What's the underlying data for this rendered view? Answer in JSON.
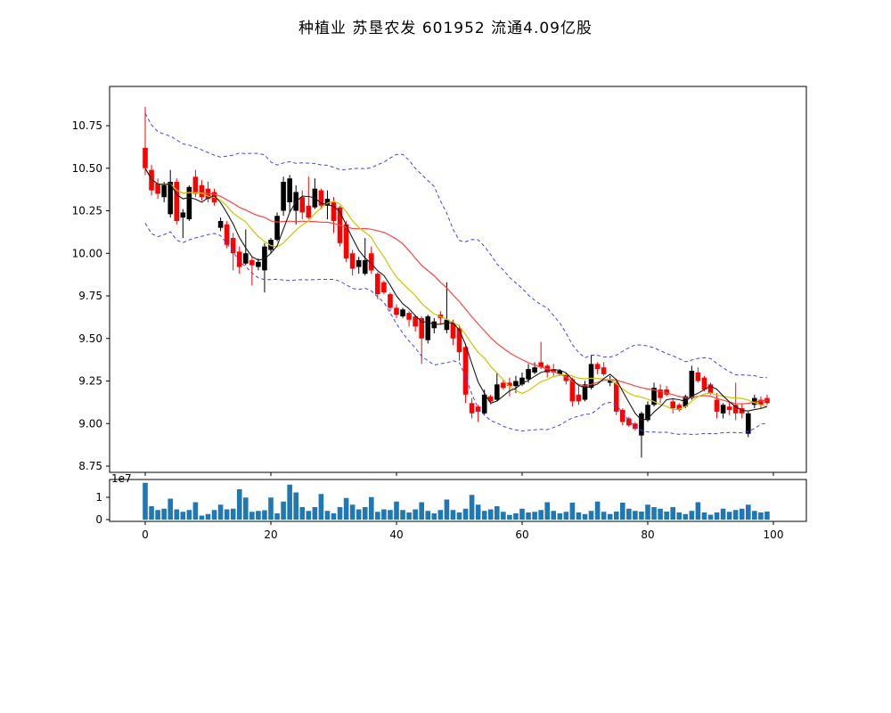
{
  "title": "种植业  苏垦农发  601952  流通4.09亿股",
  "price_chart": {
    "y_tick_labels": [
      "10.75",
      "10.50",
      "10.25",
      "10.00",
      "9.75",
      "9.50",
      "9.25",
      "9.00",
      "8.75"
    ],
    "y_tick_values": [
      10.75,
      10.5,
      10.25,
      10.0,
      9.75,
      9.5,
      9.25,
      9.0,
      8.75
    ],
    "x_tick_labels": [
      "0",
      "20",
      "40",
      "60",
      "80",
      "100"
    ],
    "x_tick_values": [
      0,
      20,
      40,
      60,
      80,
      100
    ]
  },
  "volume_chart": {
    "y_tick_labels": [
      "0",
      "1"
    ],
    "y_tick_values": [
      0,
      1
    ],
    "offset_label": "1e7"
  },
  "chart_data": {
    "type": "candlestick",
    "title": "种植业  苏垦农发  601952  流通4.09亿股",
    "xlabel": "",
    "ylabel": "",
    "xlim": [
      -5.7,
      105.2
    ],
    "ylim": [
      8.71,
      10.98
    ],
    "volume_ylim": [
      -0.1,
      1.8
    ],
    "volume_unit": "1e7",
    "grid": false,
    "legend": "none",
    "overlays": [
      {
        "name": "ma5",
        "color": "#1a1a1a",
        "style": "solid",
        "window": 5
      },
      {
        "name": "ma10",
        "color": "#c8c800",
        "style": "solid",
        "window": 10
      },
      {
        "name": "ma20",
        "color": "#ff4444",
        "style": "solid",
        "window": 20
      },
      {
        "name": "bollinger-upper",
        "color": "#4040ff",
        "style": "dashed",
        "window": 20,
        "k": 2
      },
      {
        "name": "bollinger-lower",
        "color": "#4040ff",
        "style": "dashed",
        "window": 20,
        "k": -2
      }
    ],
    "colors": {
      "up_candle": "#000000",
      "down_candle": "#ff0000",
      "volume_bar": "#1f77b4",
      "frame": "#000000"
    },
    "ohlc": [
      [
        10.62,
        10.86,
        10.46,
        10.5
      ],
      [
        10.49,
        10.52,
        10.34,
        10.37
      ],
      [
        10.41,
        10.44,
        10.32,
        10.35
      ],
      [
        10.33,
        10.42,
        10.3,
        10.4
      ],
      [
        10.23,
        10.49,
        10.21,
        10.42
      ],
      [
        10.42,
        10.44,
        10.17,
        10.19
      ],
      [
        10.21,
        10.26,
        10.09,
        10.24
      ],
      [
        10.2,
        10.4,
        10.19,
        10.39
      ],
      [
        10.45,
        10.49,
        10.33,
        10.35
      ],
      [
        10.4,
        10.43,
        10.31,
        10.33
      ],
      [
        10.38,
        10.42,
        10.3,
        10.32
      ],
      [
        10.36,
        10.38,
        10.28,
        10.3
      ],
      [
        10.15,
        10.21,
        10.13,
        10.19
      ],
      [
        10.17,
        10.19,
        10.03,
        10.05
      ],
      [
        10.09,
        10.12,
        9.9,
        10.0
      ],
      [
        10.01,
        10.04,
        9.88,
        9.92
      ],
      [
        9.94,
        10.14,
        9.93,
        10.0
      ],
      [
        9.96,
        9.98,
        9.81,
        9.93
      ],
      [
        9.92,
        9.97,
        9.9,
        9.95
      ],
      [
        9.9,
        10.06,
        9.77,
        10.04
      ],
      [
        10.02,
        10.09,
        10.0,
        10.08
      ],
      [
        10.08,
        10.24,
        10.07,
        10.22
      ],
      [
        10.25,
        10.45,
        10.22,
        10.42
      ],
      [
        10.3,
        10.46,
        10.24,
        10.44
      ],
      [
        10.25,
        10.4,
        10.17,
        10.36
      ],
      [
        10.33,
        10.37,
        10.2,
        10.24
      ],
      [
        10.28,
        10.45,
        10.2,
        10.21
      ],
      [
        10.27,
        10.44,
        10.26,
        10.38
      ],
      [
        10.37,
        10.38,
        10.26,
        10.28
      ],
      [
        10.28,
        10.37,
        10.2,
        10.32
      ],
      [
        10.3,
        10.33,
        10.12,
        10.19
      ],
      [
        10.27,
        10.28,
        10.04,
        10.06
      ],
      [
        10.17,
        10.19,
        9.95,
        9.97
      ],
      [
        10.0,
        10.02,
        9.87,
        9.91
      ],
      [
        9.92,
        9.98,
        9.88,
        9.96
      ],
      [
        9.88,
        10.09,
        9.87,
        9.96
      ],
      [
        10.0,
        10.04,
        9.88,
        9.9
      ],
      [
        9.88,
        9.89,
        9.73,
        9.76
      ],
      [
        9.83,
        9.84,
        9.76,
        9.77
      ],
      [
        9.76,
        9.77,
        9.66,
        9.68
      ],
      [
        9.68,
        9.7,
        9.62,
        9.64
      ],
      [
        9.63,
        9.68,
        9.62,
        9.67
      ],
      [
        9.65,
        9.66,
        9.57,
        9.61
      ],
      [
        9.63,
        9.64,
        9.54,
        9.57
      ],
      [
        9.62,
        9.63,
        9.35,
        9.5
      ],
      [
        9.49,
        9.64,
        9.47,
        9.63
      ],
      [
        9.56,
        9.62,
        9.53,
        9.6
      ],
      [
        9.64,
        9.66,
        9.58,
        9.62
      ],
      [
        9.55,
        9.83,
        9.53,
        9.61
      ],
      [
        9.59,
        9.61,
        9.46,
        9.5
      ],
      [
        9.56,
        9.58,
        9.37,
        9.42
      ],
      [
        9.45,
        9.47,
        9.12,
        9.17
      ],
      [
        9.12,
        9.15,
        9.03,
        9.06
      ],
      [
        9.1,
        9.11,
        9.01,
        9.07
      ],
      [
        9.06,
        9.2,
        9.05,
        9.17
      ],
      [
        9.16,
        9.17,
        9.11,
        9.13
      ],
      [
        9.14,
        9.3,
        9.13,
        9.23
      ],
      [
        9.24,
        9.26,
        9.2,
        9.21
      ],
      [
        9.24,
        9.27,
        9.16,
        9.22
      ],
      [
        9.22,
        9.28,
        9.18,
        9.25
      ],
      [
        9.23,
        9.3,
        9.22,
        9.27
      ],
      [
        9.26,
        9.35,
        9.24,
        9.32
      ],
      [
        9.3,
        9.36,
        9.29,
        9.33
      ],
      [
        9.36,
        9.48,
        9.32,
        9.33
      ],
      [
        9.34,
        9.35,
        9.27,
        9.3
      ],
      [
        9.32,
        9.35,
        9.28,
        9.3
      ],
      [
        9.29,
        9.32,
        9.28,
        9.31
      ],
      [
        9.29,
        9.3,
        9.23,
        9.25
      ],
      [
        9.26,
        9.27,
        9.1,
        9.13
      ],
      [
        9.17,
        9.22,
        9.11,
        9.13
      ],
      [
        9.14,
        9.25,
        9.13,
        9.23
      ],
      [
        9.21,
        9.4,
        9.2,
        9.35
      ],
      [
        9.35,
        9.36,
        9.29,
        9.32
      ],
      [
        9.33,
        9.36,
        9.28,
        9.29
      ],
      [
        9.24,
        9.28,
        9.22,
        9.26
      ],
      [
        9.24,
        9.25,
        9.05,
        9.07
      ],
      [
        9.08,
        9.09,
        8.99,
        9.01
      ],
      [
        9.03,
        9.04,
        8.98,
        8.99
      ],
      [
        9.0,
        9.01,
        8.96,
        8.97
      ],
      [
        8.93,
        9.07,
        8.8,
        9.06
      ],
      [
        9.02,
        9.13,
        9.01,
        9.11
      ],
      [
        9.11,
        9.24,
        9.1,
        9.21
      ],
      [
        9.2,
        9.23,
        9.12,
        9.15
      ],
      [
        9.2,
        9.22,
        9.16,
        9.17
      ],
      [
        9.13,
        9.15,
        9.06,
        9.09
      ],
      [
        9.11,
        9.12,
        9.07,
        9.08
      ],
      [
        9.1,
        9.17,
        9.09,
        9.16
      ],
      [
        9.15,
        9.34,
        9.14,
        9.31
      ],
      [
        9.3,
        9.33,
        9.24,
        9.25
      ],
      [
        9.27,
        9.28,
        9.19,
        9.2
      ],
      [
        9.23,
        9.24,
        9.17,
        9.18
      ],
      [
        9.14,
        9.18,
        9.03,
        9.07
      ],
      [
        9.06,
        9.12,
        9.03,
        9.11
      ],
      [
        9.1,
        9.13,
        9.05,
        9.08
      ],
      [
        9.11,
        9.24,
        9.02,
        9.06
      ],
      [
        9.09,
        9.12,
        9.03,
        9.06
      ],
      [
        8.94,
        9.07,
        8.92,
        9.06
      ],
      [
        9.11,
        9.17,
        9.09,
        9.15
      ],
      [
        9.14,
        9.16,
        9.09,
        9.11
      ],
      [
        9.15,
        9.17,
        9.11,
        9.12
      ]
    ],
    "volume_e7": [
      1.65,
      0.6,
      0.43,
      0.49,
      0.94,
      0.46,
      0.35,
      0.43,
      0.78,
      0.18,
      0.25,
      0.43,
      0.67,
      0.46,
      0.49,
      1.36,
      0.99,
      0.35,
      0.39,
      0.42,
      0.99,
      0.28,
      0.81,
      1.57,
      1.22,
      0.56,
      0.39,
      0.56,
      1.15,
      0.39,
      0.28,
      0.56,
      0.97,
      0.67,
      0.46,
      0.56,
      1.01,
      0.35,
      0.46,
      0.43,
      0.81,
      0.43,
      0.32,
      0.46,
      0.78,
      0.39,
      0.28,
      0.43,
      0.9,
      0.43,
      0.32,
      0.49,
      1.11,
      0.67,
      0.39,
      0.46,
      0.6,
      0.35,
      0.21,
      0.28,
      0.49,
      0.32,
      0.35,
      0.43,
      0.78,
      0.39,
      0.28,
      0.35,
      0.76,
      0.32,
      0.25,
      0.39,
      0.81,
      0.35,
      0.25,
      0.36,
      0.76,
      0.49,
      0.39,
      0.36,
      0.67,
      0.56,
      0.49,
      0.36,
      0.56,
      0.32,
      0.25,
      0.39,
      0.78,
      0.32,
      0.22,
      0.32,
      0.49,
      0.35,
      0.43,
      0.49,
      0.67,
      0.39,
      0.32,
      0.36
    ]
  }
}
